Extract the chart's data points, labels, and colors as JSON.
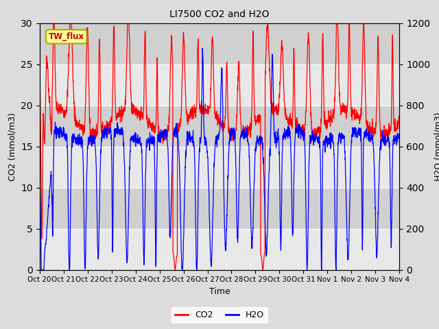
{
  "title": "LI7500 CO2 and H2O",
  "xlabel": "Time",
  "ylabel_left": "CO2 (mmol/m3)",
  "ylabel_right": "H2O (mmol/m3)",
  "annotation": "TW_flux",
  "x_tick_labels": [
    "Oct 20",
    "Oct 21",
    "Oct 22",
    "Oct 23",
    "Oct 24",
    "Oct 25",
    "Oct 26",
    "Oct 27",
    "Oct 28",
    "Oct 29",
    "Oct 30",
    "Oct 31",
    "Nov 1",
    "Nov 2",
    "Nov 3",
    "Nov 4"
  ],
  "ylim_left": [
    0,
    30
  ],
  "ylim_right": [
    0,
    1200
  ],
  "yticks_left": [
    0,
    5,
    10,
    15,
    20,
    25,
    30
  ],
  "yticks_right": [
    0,
    200,
    400,
    600,
    800,
    1000,
    1200
  ],
  "co2_color": "#FF0000",
  "h2o_color": "#0000FF",
  "bg_outer": "#DCDCDC",
  "bg_inner_light": "#E8E8E8",
  "bg_inner_dark": "#D0D0D0",
  "grid_color": "#FFFFFF",
  "annotation_bg": "#FFFF99",
  "annotation_border": "#AAAA00",
  "legend_co2": "CO2",
  "legend_h2o": "H2O",
  "n_points": 2000,
  "seed": 7
}
